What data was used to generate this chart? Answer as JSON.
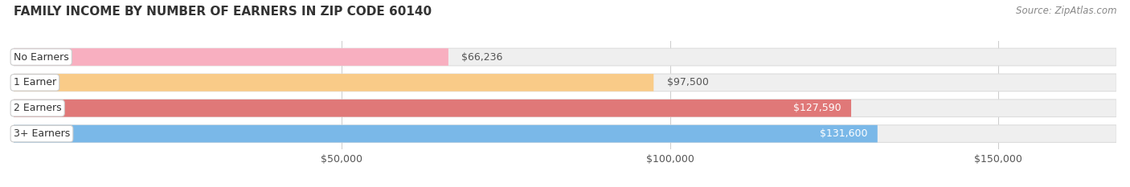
{
  "title": "FAMILY INCOME BY NUMBER OF EARNERS IN ZIP CODE 60140",
  "source": "Source: ZipAtlas.com",
  "categories": [
    "No Earners",
    "1 Earner",
    "2 Earners",
    "3+ Earners"
  ],
  "values": [
    66236,
    97500,
    127590,
    131600
  ],
  "bar_colors": [
    "#f8afc0",
    "#f9cb88",
    "#e07878",
    "#7ab8e8"
  ],
  "bar_bg_color": "#efefef",
  "bar_bg_edge_color": "#dddddd",
  "label_dark": "#555555",
  "label_white": "#ffffff",
  "label_threshold": 110000,
  "background_color": "#ffffff",
  "xlim": [
    0,
    168000
  ],
  "xticks": [
    50000,
    100000,
    150000
  ],
  "xtick_labels": [
    "$50,000",
    "$100,000",
    "$150,000"
  ],
  "title_fontsize": 11,
  "source_fontsize": 8.5,
  "label_fontsize": 9,
  "tick_fontsize": 9,
  "category_fontsize": 9
}
